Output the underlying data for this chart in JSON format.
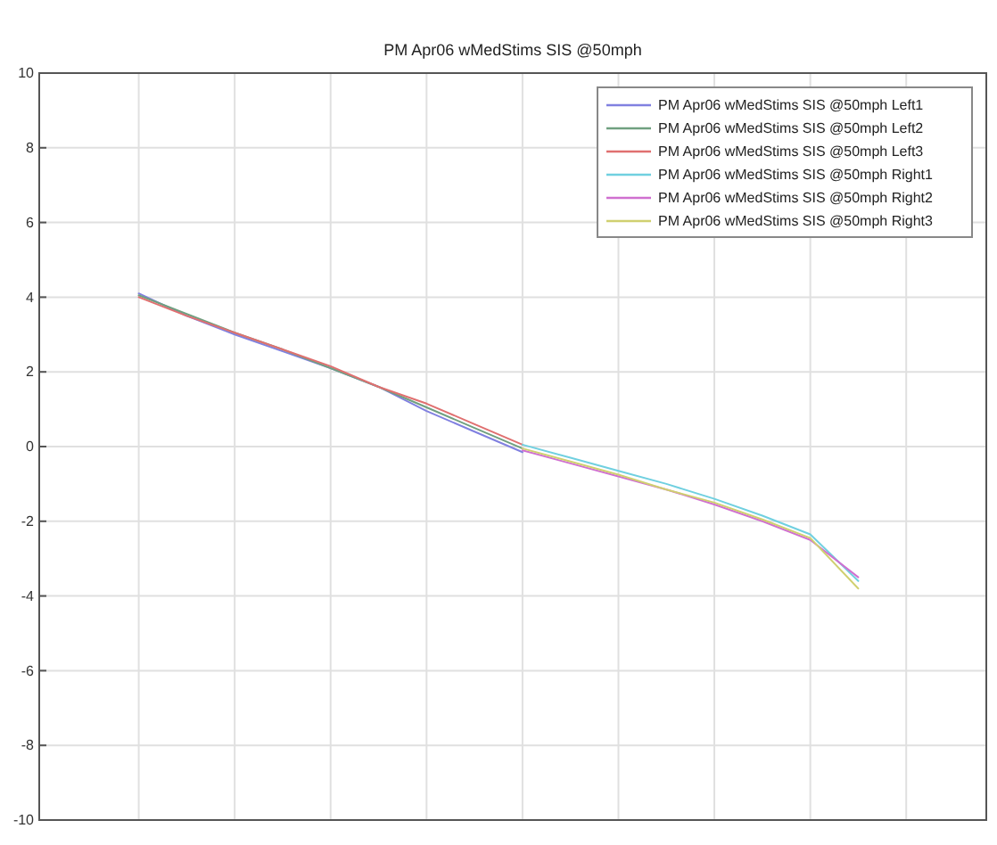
{
  "chart_data": {
    "type": "line",
    "title": "PM Apr06 wMedStims  SIS @50mph",
    "categories": [
      null,
      null,
      null,
      null,
      null,
      null,
      null,
      null,
      null,
      null,
      null,
      null,
      null,
      null,
      null,
      null,
      null,
      null,
      null,
      null
    ],
    "series": [
      {
        "name": "PM Apr06 wMedStims  SIS @50mph Left1",
        "color": "#8080e0",
        "values": [
          null,
          null,
          4.1,
          3.5,
          3.0,
          2.55,
          2.1,
          1.6,
          0.95,
          0.4,
          -0.15,
          null,
          null,
          null,
          null,
          null,
          null,
          null,
          null,
          null
        ]
      },
      {
        "name": "PM Apr06 wMedStims  SIS @50mph Left2",
        "color": "#70a080",
        "values": [
          null,
          null,
          4.05,
          3.55,
          3.05,
          2.6,
          2.1,
          1.6,
          1.05,
          0.5,
          -0.05,
          null,
          null,
          null,
          null,
          null,
          null,
          null,
          null,
          null
        ]
      },
      {
        "name": "PM Apr06 wMedStims  SIS @50mph Left3",
        "color": "#e07070",
        "values": [
          null,
          null,
          4.0,
          3.5,
          3.05,
          2.6,
          2.15,
          1.6,
          1.15,
          0.6,
          0.05,
          null,
          null,
          null,
          null,
          null,
          null,
          null,
          null,
          null
        ]
      },
      {
        "name": "PM Apr06 wMedStims  SIS @50mph Right1",
        "color": "#70d0e0",
        "values": [
          null,
          null,
          null,
          null,
          null,
          null,
          null,
          null,
          null,
          null,
          0.05,
          -0.3,
          -0.65,
          -1.0,
          -1.4,
          -1.85,
          -2.35,
          -3.6,
          null,
          null
        ]
      },
      {
        "name": "PM Apr06 wMedStims  SIS @50mph Right2",
        "color": "#d070d0",
        "values": [
          null,
          null,
          null,
          null,
          null,
          null,
          null,
          null,
          null,
          null,
          -0.1,
          -0.45,
          -0.8,
          -1.15,
          -1.55,
          -2.0,
          -2.5,
          -3.5,
          null,
          null
        ]
      },
      {
        "name": "PM Apr06 wMedStims  SIS @50mph Right3",
        "color": "#d0d070",
        "values": [
          null,
          null,
          null,
          null,
          null,
          null,
          null,
          null,
          null,
          null,
          -0.05,
          -0.4,
          -0.75,
          -1.15,
          -1.5,
          -1.95,
          -2.45,
          -3.8,
          null,
          null
        ]
      }
    ],
    "ylim": [
      -10,
      10
    ],
    "yticks": [
      -10,
      -8,
      -6,
      -4,
      -2,
      0,
      2,
      4,
      6,
      8,
      10
    ],
    "tick_labels": "y",
    "grid": true,
    "legend": "top right"
  }
}
